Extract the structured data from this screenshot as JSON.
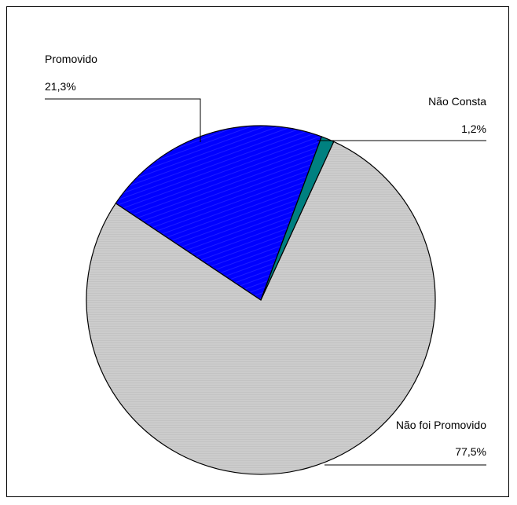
{
  "chart_data": {
    "type": "pie",
    "title": "",
    "slices": [
      {
        "label": "Não foi Promovido",
        "value": 77.5,
        "value_label": "77,5%",
        "color": "#cccccc",
        "hatch": "horizontal-lines"
      },
      {
        "label": "Promovido",
        "value": 21.3,
        "value_label": "21,3%",
        "color": "#0000ff",
        "hatch": "diagonal-lines"
      },
      {
        "label": "Não Consta",
        "value": 1.2,
        "value_label": "1,2%",
        "color": "#008080",
        "hatch": "none"
      }
    ],
    "legend": "none",
    "labels": "outside-with-leader-lines"
  }
}
